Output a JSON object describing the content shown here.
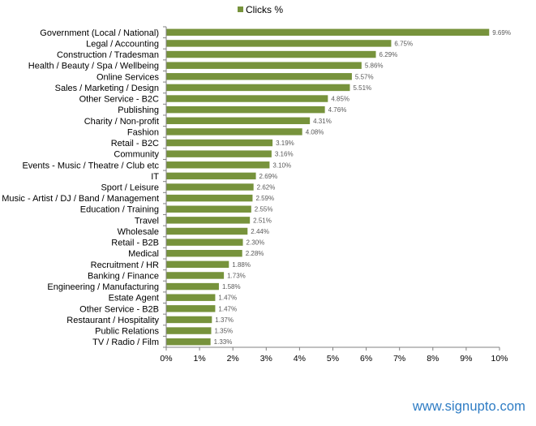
{
  "chart_data": {
    "type": "bar",
    "orientation": "horizontal",
    "categories": [
      "Government (Local / National)",
      "Legal / Accounting",
      "Construction / Tradesman",
      "Health / Beauty / Spa / Wellbeing",
      "Online Services",
      "Sales / Marketing / Design",
      "Other Service - B2C",
      "Publishing",
      "Charity / Non-profit",
      "Fashion",
      "Retail - B2C",
      "Community",
      "Events - Music / Theatre / Club etc",
      "IT",
      "Sport / Leisure",
      "Music - Artist / DJ / Band / Management",
      "Education / Training",
      "Travel",
      "Wholesale",
      "Retail - B2B",
      "Medical",
      "Recruitment / HR",
      "Banking / Finance",
      "Engineering / Manufacturing",
      "Estate Agent",
      "Other Service - B2B",
      "Restaurant / Hospitality",
      "Public Relations",
      "TV / Radio / Film"
    ],
    "series": [
      {
        "name": "Clicks %",
        "values": [
          9.69,
          6.75,
          6.29,
          5.86,
          5.57,
          5.51,
          4.85,
          4.76,
          4.31,
          4.08,
          3.19,
          3.16,
          3.1,
          2.69,
          2.62,
          2.59,
          2.55,
          2.51,
          2.44,
          2.3,
          2.28,
          1.88,
          1.73,
          1.58,
          1.47,
          1.47,
          1.37,
          1.35,
          1.33
        ],
        "value_labels": [
          "9.69%",
          "6.75%",
          "6.29%",
          "5.86%",
          "5.57%",
          "5.51%",
          "4.85%",
          "4.76%",
          "4.31%",
          "4.08%",
          "3.19%",
          "3.16%",
          "3.10%",
          "2.69%",
          "2.62%",
          "2.59%",
          "2.55%",
          "2.51%",
          "2.44%",
          "2.30%",
          "2.28%",
          "1.88%",
          "1.73%",
          "1.58%",
          "1.47%",
          "1.47%",
          "1.37%",
          "1.35%",
          "1.33%"
        ]
      }
    ],
    "title": "",
    "xlabel": "",
    "ylabel": "",
    "xlim": [
      0,
      10
    ],
    "x_ticks": [
      "0%",
      "1%",
      "2%",
      "3%",
      "4%",
      "5%",
      "6%",
      "7%",
      "8%",
      "9%",
      "10%"
    ],
    "grid": false,
    "legend_position": "top",
    "colors": {
      "bar": "#77933C",
      "axis": "#808080",
      "value_label": "#595959"
    }
  },
  "watermark": "www.signupto.com",
  "colors": {
    "watermark": "#2E7CC4"
  }
}
